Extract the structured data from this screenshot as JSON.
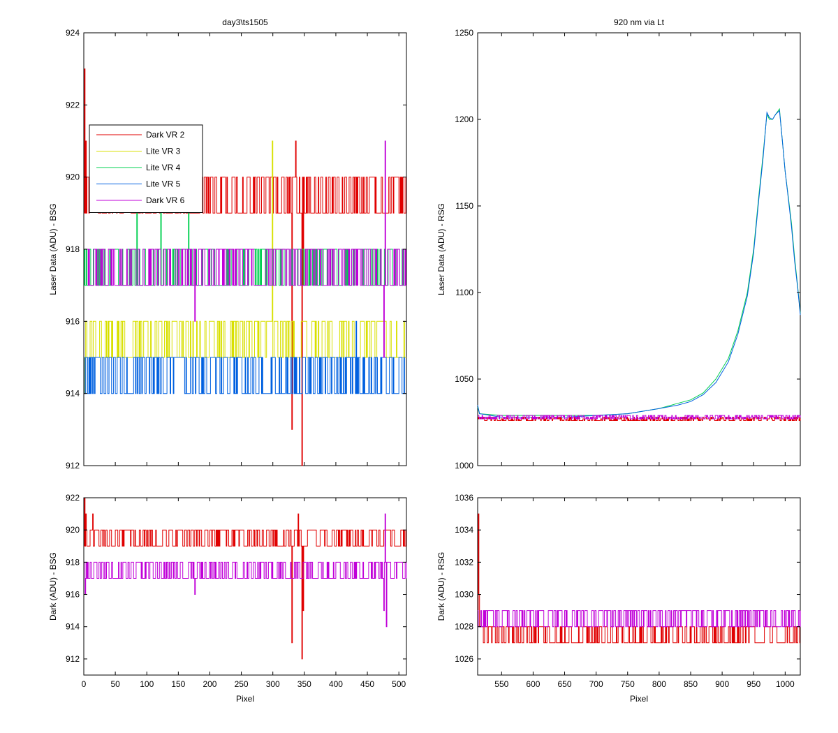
{
  "figure": {
    "colors": {
      "Dark VR 2": "#e00000",
      "Lite VR 3": "#d8e000",
      "Lite VR 4": "#00d050",
      "Lite VR 5": "#0060e0",
      "Dark VR 6": "#c000d8"
    }
  },
  "chart_data": [
    {
      "id": "tl",
      "type": "line",
      "title": "day3\\ts1505",
      "xlabel": "",
      "ylabel": "Laser Data (ADU) - BSG",
      "xlim": [
        0,
        512
      ],
      "ylim": [
        912,
        924
      ],
      "yticks": [
        "912",
        "914",
        "916",
        "918",
        "920",
        "922",
        "924"
      ],
      "xticks": [],
      "legend": {
        "placement": "upper-left",
        "entries": [
          "Dark VR 2",
          "Lite VR 3",
          "Lite VR 4",
          "Lite VR 5",
          "Dark VR 6"
        ]
      },
      "series": [
        {
          "name": "Dark VR 2",
          "pattern": "dither",
          "x_range": [
            0,
            512
          ],
          "levels": [
            919,
            920
          ],
          "spikes": [
            [
              1,
              923
            ],
            [
              3,
              921
            ],
            [
              330,
              913
            ],
            [
              336,
              921
            ],
            [
              346,
              912
            ],
            [
              348,
              917
            ]
          ]
        },
        {
          "name": "Lite VR 3",
          "pattern": "dither",
          "x_range": [
            0,
            512
          ],
          "levels": [
            915,
            916
          ],
          "spikes": [
            [
              1,
              914
            ],
            [
              299,
              921
            ]
          ]
        },
        {
          "name": "Lite VR 4",
          "pattern": "dither",
          "x_range": [
            0,
            512
          ],
          "levels": [
            917,
            918
          ],
          "spikes": [
            [
              84,
              919
            ],
            [
              122,
              919
            ],
            [
              166,
              919
            ]
          ]
        },
        {
          "name": "Lite VR 5",
          "pattern": "dither",
          "x_range": [
            0,
            512
          ],
          "levels": [
            914,
            915
          ],
          "spikes": [
            [
              432,
              916
            ]
          ]
        },
        {
          "name": "Dark VR 6",
          "pattern": "dither",
          "x_range": [
            0,
            512
          ],
          "levels": [
            917,
            918
          ],
          "spikes": [
            [
              176,
              916
            ],
            [
              478,
              921
            ],
            [
              476,
              915
            ]
          ]
        }
      ]
    },
    {
      "id": "tr",
      "type": "line",
      "title": "920 nm via Lt",
      "xlabel": "",
      "ylabel": "Laser Data (ADU) - RSG",
      "xlim": [
        512,
        1024
      ],
      "ylim": [
        1000,
        1250
      ],
      "yticks": [
        "1000",
        "1050",
        "1100",
        "1150",
        "1200",
        "1250"
      ],
      "xticks": [],
      "series": [
        {
          "name": "Lite VR 4",
          "pattern": "curve",
          "points": [
            [
              512,
              1034
            ],
            [
              515,
              1030
            ],
            [
              550,
              1029
            ],
            [
              600,
              1029
            ],
            [
              650,
              1029
            ],
            [
              700,
              1029
            ],
            [
              750,
              1030
            ],
            [
              800,
              1033
            ],
            [
              830,
              1036
            ],
            [
              850,
              1038
            ],
            [
              870,
              1042
            ],
            [
              890,
              1050
            ],
            [
              910,
              1062
            ],
            [
              925,
              1078
            ],
            [
              940,
              1100
            ],
            [
              950,
              1125
            ],
            [
              958,
              1155
            ],
            [
              965,
              1180
            ],
            [
              971,
              1203
            ],
            [
              975,
              1200
            ],
            [
              980,
              1200
            ],
            [
              985,
              1203
            ],
            [
              991,
              1206
            ],
            [
              995,
              1190
            ],
            [
              1000,
              1170
            ],
            [
              1005,
              1155
            ],
            [
              1010,
              1140
            ],
            [
              1015,
              1120
            ],
            [
              1020,
              1103
            ],
            [
              1024,
              1088
            ]
          ]
        },
        {
          "name": "Lite VR 5",
          "pattern": "curve",
          "points": [
            [
              512,
              1035
            ],
            [
              515,
              1030
            ],
            [
              550,
              1028
            ],
            [
              600,
              1028
            ],
            [
              650,
              1028
            ],
            [
              700,
              1029
            ],
            [
              750,
              1030
            ],
            [
              800,
              1033
            ],
            [
              830,
              1035
            ],
            [
              850,
              1037
            ],
            [
              870,
              1041
            ],
            [
              890,
              1048
            ],
            [
              910,
              1060
            ],
            [
              925,
              1076
            ],
            [
              940,
              1098
            ],
            [
              950,
              1123
            ],
            [
              958,
              1153
            ],
            [
              965,
              1178
            ],
            [
              971,
              1204
            ],
            [
              975,
              1201
            ],
            [
              980,
              1200
            ],
            [
              985,
              1203
            ],
            [
              991,
              1205
            ],
            [
              995,
              1190
            ],
            [
              1000,
              1170
            ],
            [
              1005,
              1154
            ],
            [
              1010,
              1138
            ],
            [
              1015,
              1118
            ],
            [
              1020,
              1102
            ],
            [
              1024,
              1087
            ]
          ]
        },
        {
          "name": "Dark VR 2",
          "pattern": "dither",
          "x_range": [
            512,
            1024
          ],
          "levels": [
            1026,
            1028
          ],
          "spikes": []
        },
        {
          "name": "Dark VR 6",
          "pattern": "dither",
          "x_range": [
            512,
            1024
          ],
          "levels": [
            1027,
            1029
          ],
          "spikes": []
        }
      ]
    },
    {
      "id": "bl",
      "type": "line",
      "title": "",
      "xlabel": "Pixel",
      "ylabel": "Dark (ADU) - BSG",
      "xlim": [
        0,
        512
      ],
      "ylim": [
        911,
        922
      ],
      "yticks": [
        "912",
        "914",
        "916",
        "918",
        "920",
        "922"
      ],
      "xticks": [
        "0",
        "50",
        "100",
        "150",
        "200",
        "250",
        "300",
        "350",
        "400",
        "450",
        "500"
      ],
      "series": [
        {
          "name": "Dark VR 2",
          "pattern": "dither",
          "x_range": [
            0,
            512
          ],
          "levels": [
            919,
            920
          ],
          "spikes": [
            [
              1,
              922
            ],
            [
              3,
              921
            ],
            [
              14,
              921
            ],
            [
              330,
              913
            ],
            [
              340,
              921
            ],
            [
              346,
              912
            ],
            [
              348,
              915
            ]
          ]
        },
        {
          "name": "Dark VR 6",
          "pattern": "dither",
          "x_range": [
            0,
            512
          ],
          "levels": [
            917,
            918
          ],
          "spikes": [
            [
              2,
              916
            ],
            [
              176,
              916
            ],
            [
              476,
              915
            ],
            [
              478,
              921
            ],
            [
              480,
              914
            ]
          ]
        }
      ]
    },
    {
      "id": "br",
      "type": "line",
      "title": "",
      "xlabel": "Pixel",
      "ylabel": "Dark (ADU) - RSG",
      "xlim": [
        512,
        1024
      ],
      "ylim": [
        1025,
        1036
      ],
      "yticks": [
        "1026",
        "1028",
        "1030",
        "1032",
        "1034",
        "1036"
      ],
      "xticks": [
        "550",
        "600",
        "650",
        "700",
        "750",
        "800",
        "850",
        "900",
        "950",
        "1000"
      ],
      "series": [
        {
          "name": "Dark VR 2",
          "pattern": "dither",
          "x_range": [
            512,
            1024
          ],
          "levels": [
            1027,
            1028
          ],
          "spikes": [
            [
              513,
              1035
            ],
            [
              514,
              1030
            ]
          ]
        },
        {
          "name": "Dark VR 6",
          "pattern": "dither",
          "x_range": [
            512,
            1024
          ],
          "levels": [
            1028,
            1029
          ],
          "spikes": []
        }
      ]
    }
  ]
}
